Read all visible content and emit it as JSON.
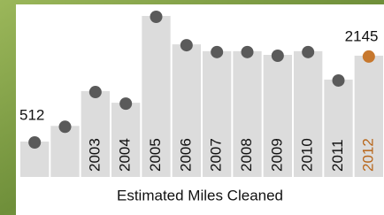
{
  "chart_data": {
    "type": "bar",
    "title": "Estimated Miles Cleaned",
    "categories": [
      null,
      null,
      "2003",
      "2004",
      "2005",
      "2006",
      "2007",
      "2008",
      "2009",
      "2010",
      "2011",
      "2012"
    ],
    "values": [
      512,
      810,
      1470,
      1250,
      2900,
      2360,
      2230,
      2230,
      2160,
      2230,
      1690,
      2145
    ],
    "bar_color": "#dcdcdc",
    "dot_colors": [
      "#5a5a5a",
      "#5a5a5a",
      "#5a5a5a",
      "#5a5a5a",
      "#5a5a5a",
      "#5a5a5a",
      "#5a5a5a",
      "#5a5a5a",
      "#5a5a5a",
      "#5a5a5a",
      "#5a5a5a",
      "#c7782e"
    ],
    "label_colors": [
      "#111111",
      "#111111",
      "#111111",
      "#111111",
      "#111111",
      "#111111",
      "#111111",
      "#111111",
      "#111111",
      "#111111",
      "#111111",
      "#b8661a"
    ]
  }
}
